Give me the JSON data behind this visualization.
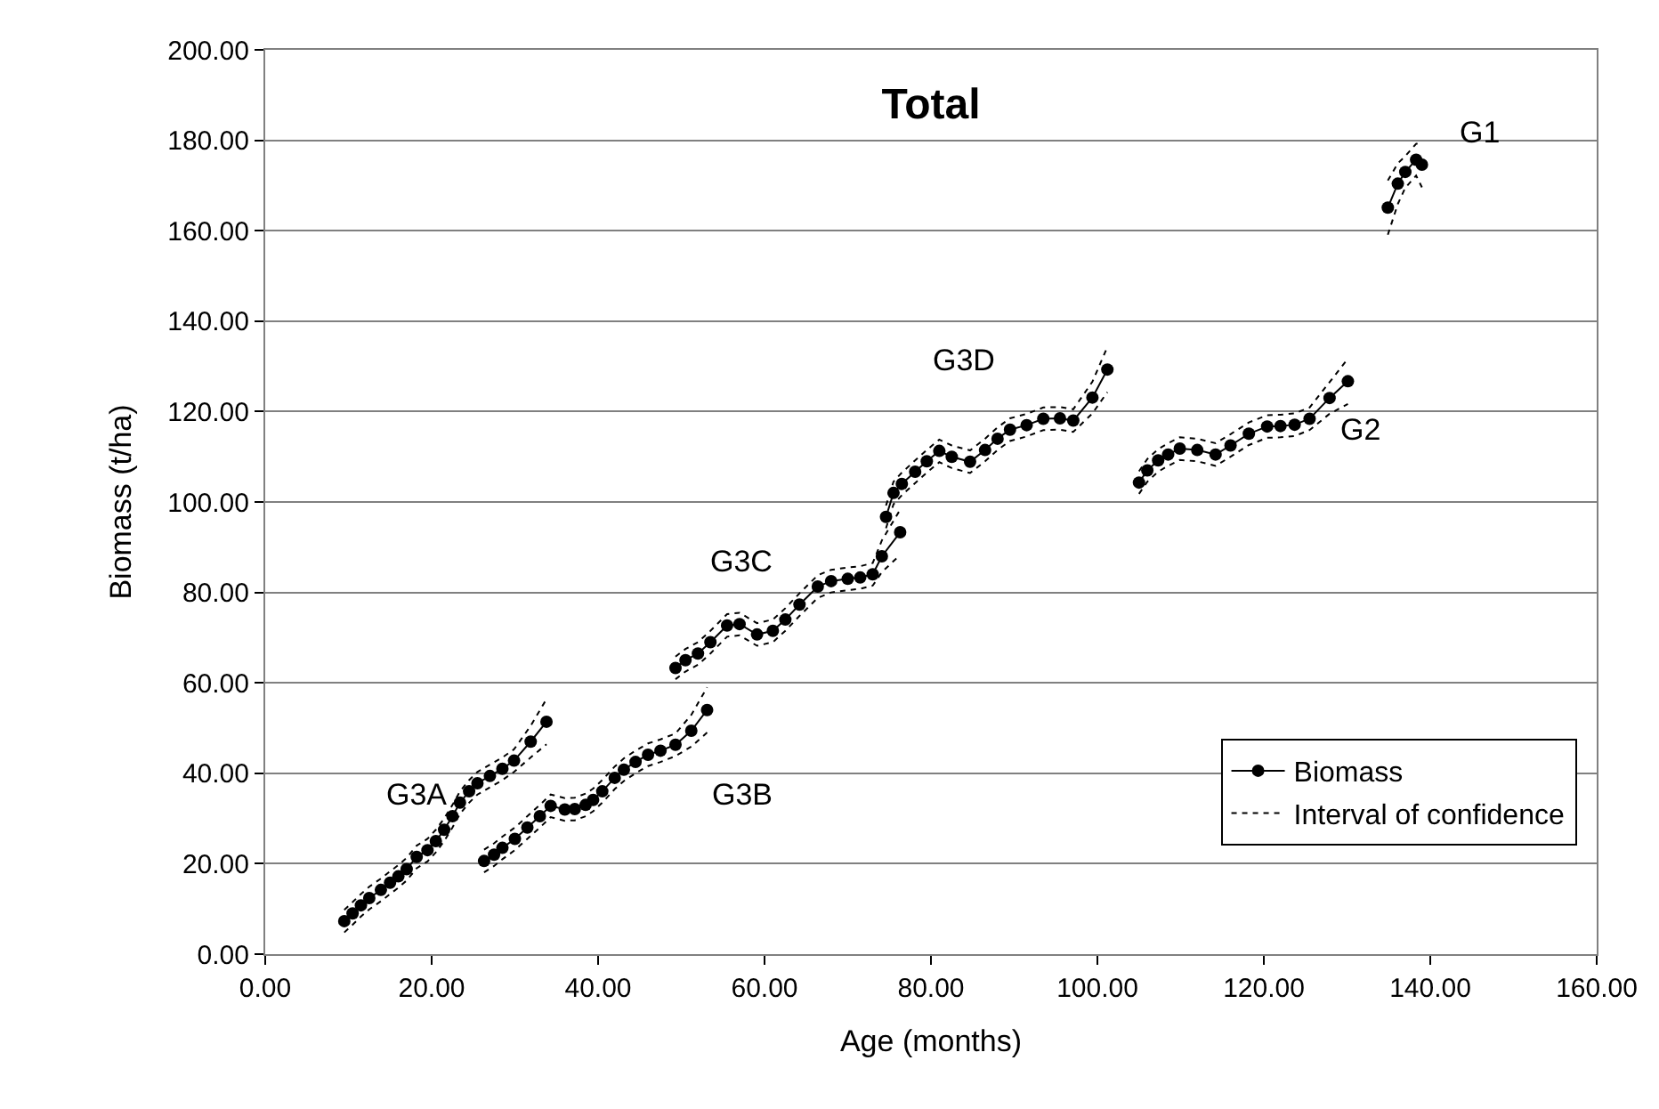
{
  "chart_data": {
    "type": "line",
    "title": "Total",
    "xlabel": "Age (months)",
    "ylabel": "Biomass (t/ha)",
    "xlim": [
      0,
      160
    ],
    "ylim": [
      0,
      200
    ],
    "xticks": [
      {
        "value": 0,
        "label": "0.00"
      },
      {
        "value": 20,
        "label": "20.00"
      },
      {
        "value": 40,
        "label": "40.00"
      },
      {
        "value": 60,
        "label": "60.00"
      },
      {
        "value": 80,
        "label": "80.00"
      },
      {
        "value": 100,
        "label": "100.00"
      },
      {
        "value": 120,
        "label": "120.00"
      },
      {
        "value": 140,
        "label": "140.00"
      },
      {
        "value": 160,
        "label": "160.00"
      }
    ],
    "yticks": [
      {
        "value": 0,
        "label": "0.00"
      },
      {
        "value": 20,
        "label": "20.00"
      },
      {
        "value": 40,
        "label": "40.00"
      },
      {
        "value": 60,
        "label": "60.00"
      },
      {
        "value": 80,
        "label": "80.00"
      },
      {
        "value": 100,
        "label": "100.00"
      },
      {
        "value": 120,
        "label": "120.00"
      },
      {
        "value": 140,
        "label": "140.00"
      },
      {
        "value": 160,
        "label": "160.00"
      },
      {
        "value": 180,
        "label": "180.00"
      },
      {
        "value": 200,
        "label": "200.00"
      }
    ],
    "grid": "y",
    "legend": "bottom right",
    "x": [
      9.5,
      10.5,
      11.5,
      12.5,
      13.9,
      15,
      16,
      17,
      18.2,
      19.5,
      20.5,
      21.5,
      22.5,
      23.4,
      24.5,
      25.5,
      27,
      28.5,
      29.9,
      31.9,
      33.8,
      null,
      26.3,
      27.5,
      28.5,
      30,
      31.5,
      33,
      34.3,
      36,
      37.2,
      38.5,
      39.4,
      40.5,
      42,
      43.1,
      44.5,
      46,
      47.5,
      49.3,
      51.2,
      53.1,
      null,
      49.3,
      50.5,
      52,
      53.5,
      55.5,
      57,
      59.1,
      61,
      62.5,
      64.2,
      66.4,
      68,
      70,
      71.5,
      73,
      74.1,
      76.3,
      null,
      74.6,
      75.5,
      76.5,
      78.1,
      79.5,
      81,
      82.5,
      84.7,
      86.5,
      88,
      89.5,
      91.5,
      93.5,
      95.5,
      97.1,
      99.4,
      101.2,
      null,
      105,
      106,
      107.3,
      108.5,
      109.9,
      112,
      114.2,
      116,
      118.2,
      120.4,
      122,
      123.7,
      125.5,
      127.9,
      130.1,
      null,
      134.9,
      136.1,
      137,
      138.3,
      139
    ],
    "series": [
      {
        "name": "Biomass",
        "color": "#000000",
        "marker": "circle",
        "line_style": "solid",
        "values": [
          7.3,
          9,
          10.8,
          12.4,
          14.2,
          15.8,
          17.2,
          18.8,
          21.5,
          23,
          25,
          27.5,
          30.5,
          33.5,
          36,
          37.8,
          39.4,
          41,
          42.8,
          47,
          51.4,
          null,
          20.6,
          22,
          23.5,
          25.5,
          28,
          30.5,
          32.8,
          32,
          32.1,
          33,
          34.1,
          36,
          39,
          40.8,
          42.5,
          44.1,
          45,
          46.3,
          49.4,
          54,
          null,
          63.3,
          65,
          66.5,
          69,
          72.7,
          73,
          70.7,
          71.5,
          74,
          77.3,
          81.3,
          82.5,
          83,
          83.3,
          84,
          88,
          93.3,
          null,
          96.7,
          102,
          104,
          106.7,
          109,
          111.3,
          110,
          108.9,
          111.5,
          114,
          116,
          117,
          118.4,
          118.5,
          118,
          123.1,
          129.3,
          null,
          104.3,
          107,
          109.2,
          110.5,
          111.8,
          111.5,
          110.5,
          112.5,
          115.1,
          116.7,
          116.8,
          117.1,
          118.4,
          123,
          126.7,
          null,
          165.1,
          170.4,
          173,
          175.7,
          174.6
        ]
      },
      {
        "name": "Interval of confidence",
        "color": "#000000",
        "marker": "none",
        "line_style": "dotted",
        "values": [
          9.8,
          11.5,
          13.3,
          14.9,
          16.7,
          18.3,
          19.7,
          21.3,
          24,
          25.5,
          27.5,
          30,
          33,
          36,
          38.5,
          40.3,
          41.9,
          43.5,
          45.3,
          50.5,
          56.4,
          null,
          23.1,
          24.5,
          26,
          28,
          30.5,
          33,
          35.3,
          34.5,
          34.6,
          35.5,
          36.6,
          38.5,
          41.5,
          43.3,
          45,
          46.6,
          47.5,
          48.8,
          52.9,
          59,
          null,
          65.8,
          67.5,
          69,
          71.5,
          75.2,
          75.5,
          73.2,
          74,
          76.5,
          79.8,
          83.8,
          85,
          85.5,
          85.8,
          86.5,
          91.5,
          98.3,
          null,
          99.2,
          104.5,
          106.5,
          109.2,
          111.5,
          113.8,
          112.5,
          111.4,
          114,
          116.5,
          118.5,
          119.5,
          120.9,
          121,
          120.5,
          126.6,
          134.3,
          null,
          106.8,
          109.5,
          111.7,
          113,
          114.3,
          114,
          113,
          115,
          117.6,
          119.2,
          119.3,
          119.6,
          120.9,
          126.5,
          131.7,
          null,
          171.1,
          174.9,
          176.5,
          179.2,
          179.6
        ]
      },
      {
        "color": "#000000",
        "marker": "none",
        "line_style": "dotted",
        "values": [
          4.8,
          6.5,
          8.3,
          9.9,
          11.7,
          13.3,
          14.7,
          16.3,
          19,
          20.5,
          22.5,
          25,
          28,
          31,
          33.5,
          35.3,
          36.9,
          38.5,
          40.3,
          43.5,
          46.4,
          null,
          18.1,
          19.5,
          21,
          23,
          25.5,
          28,
          30.3,
          29.5,
          29.6,
          30.5,
          31.6,
          33.5,
          36.5,
          38.3,
          40,
          41.6,
          42.5,
          43.8,
          45.9,
          49,
          null,
          60.8,
          62.5,
          64,
          66.5,
          70.2,
          70.5,
          68.2,
          69,
          71.5,
          74.8,
          78.8,
          80,
          80.5,
          80.8,
          81.5,
          84.5,
          88.3,
          null,
          94.2,
          99.5,
          101.5,
          104.2,
          106.5,
          108.8,
          107.5,
          106.4,
          109,
          111.5,
          113.5,
          114.5,
          115.9,
          116,
          115.5,
          119.6,
          124.3,
          null,
          101.8,
          104.5,
          106.7,
          108,
          109.3,
          109,
          108,
          110,
          112.6,
          114.2,
          114.3,
          114.6,
          115.9,
          119.5,
          121.7,
          null,
          159.1,
          165.9,
          169.5,
          172.2,
          169.6
        ]
      }
    ],
    "annotations": [
      "G3A",
      "G3B",
      "G3C",
      "G3D",
      "G2",
      "G1"
    ]
  }
}
